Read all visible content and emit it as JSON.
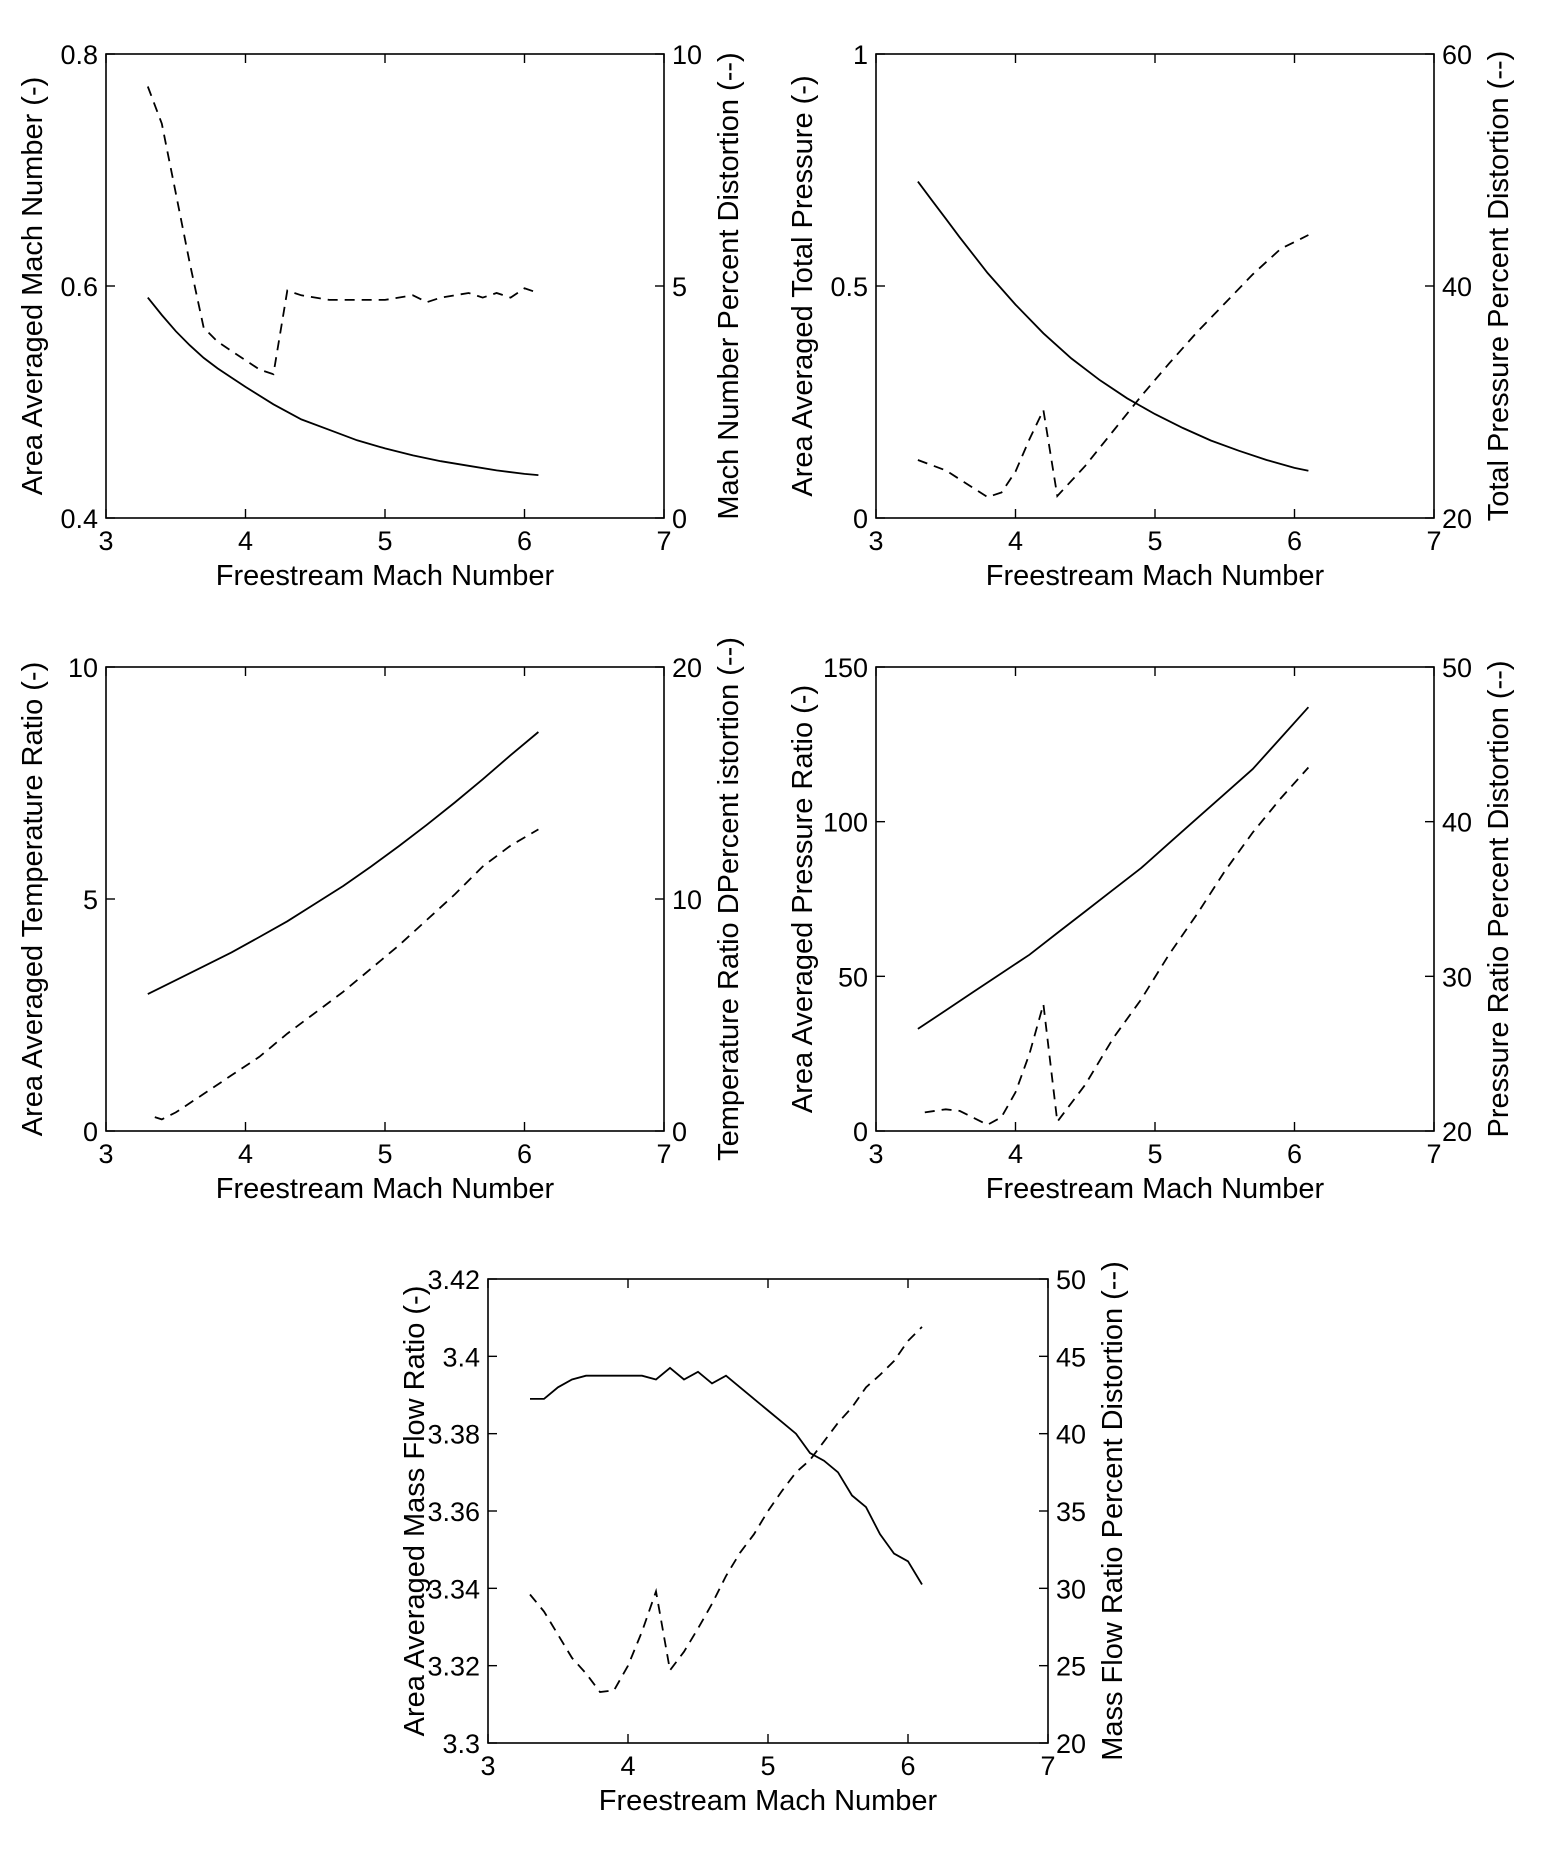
{
  "chart_data": [
    {
      "type": "line",
      "xlabel": "Freestream Mach Number",
      "ylabel": "Area Averaged Mach Number (-)",
      "y2label": "Mach Number Percent Distortion (--)",
      "xlim": [
        3,
        7
      ],
      "ylim": [
        0.4,
        0.8
      ],
      "y2lim": [
        0,
        10
      ],
      "xticks": [
        "3",
        "4",
        "5",
        "6",
        "7"
      ],
      "yticks": [
        "0.4",
        "0.6",
        "0.8"
      ],
      "y2ticks": [
        "0",
        "5",
        "10"
      ],
      "grid": false,
      "series": [
        {
          "axis": "left",
          "style": "solid",
          "x": [
            3.3,
            3.4,
            3.5,
            3.6,
            3.7,
            3.8,
            3.9,
            4.0,
            4.2,
            4.4,
            4.6,
            4.8,
            5.0,
            5.2,
            5.4,
            5.6,
            5.8,
            6.0,
            6.1
          ],
          "y": [
            0.59,
            0.575,
            0.561,
            0.549,
            0.538,
            0.529,
            0.521,
            0.513,
            0.498,
            0.485,
            0.476,
            0.467,
            0.46,
            0.454,
            0.449,
            0.445,
            0.441,
            0.438,
            0.437
          ]
        },
        {
          "axis": "right",
          "style": "dashed",
          "x": [
            3.3,
            3.4,
            3.5,
            3.6,
            3.7,
            3.8,
            3.9,
            4.0,
            4.1,
            4.2,
            4.3,
            4.4,
            4.6,
            4.8,
            5.0,
            5.2,
            5.3,
            5.4,
            5.6,
            5.7,
            5.8,
            5.9,
            6.0,
            6.1
          ],
          "y": [
            9.3,
            8.5,
            7.0,
            5.5,
            4.1,
            3.8,
            3.6,
            3.4,
            3.2,
            3.1,
            4.9,
            4.8,
            4.7,
            4.7,
            4.7,
            4.8,
            4.65,
            4.75,
            4.85,
            4.75,
            4.85,
            4.75,
            4.95,
            4.85
          ]
        }
      ]
    },
    {
      "type": "line",
      "xlabel": "Freestream Mach Number",
      "ylabel": "Area Averaged Total Pressure (-)",
      "y2label": "Total Pressure Percent Distortion (--)",
      "xlim": [
        3,
        7
      ],
      "ylim": [
        0,
        1
      ],
      "y2lim": [
        20,
        60
      ],
      "xticks": [
        "3",
        "4",
        "5",
        "6",
        "7"
      ],
      "yticks": [
        "0",
        "0.5",
        "1"
      ],
      "y2ticks": [
        "20",
        "40",
        "60"
      ],
      "grid": false,
      "series": [
        {
          "axis": "left",
          "style": "solid",
          "x": [
            3.3,
            3.4,
            3.5,
            3.6,
            3.8,
            4.0,
            4.2,
            4.4,
            4.6,
            4.8,
            5.0,
            5.2,
            5.4,
            5.6,
            5.8,
            6.0,
            6.1
          ],
          "y": [
            0.725,
            0.685,
            0.645,
            0.605,
            0.528,
            0.46,
            0.398,
            0.344,
            0.298,
            0.258,
            0.224,
            0.194,
            0.167,
            0.145,
            0.125,
            0.108,
            0.102
          ]
        },
        {
          "axis": "right",
          "style": "dashed",
          "x": [
            3.3,
            3.5,
            3.8,
            3.9,
            4.0,
            4.1,
            4.2,
            4.3,
            4.5,
            4.7,
            4.9,
            5.1,
            5.3,
            5.5,
            5.7,
            5.9,
            6.1
          ],
          "y": [
            25.0,
            24.1,
            21.8,
            22.2,
            24.0,
            26.8,
            29.3,
            21.9,
            24.5,
            27.5,
            30.5,
            33.3,
            36.0,
            38.5,
            41.0,
            43.2,
            44.4
          ]
        }
      ]
    },
    {
      "type": "line",
      "xlabel": "Freestream Mach Number",
      "ylabel": "Area Averaged Temperature Ratio (-)",
      "y2label": "Temperature Ratio DPercent istortion (--)",
      "xlim": [
        3,
        7
      ],
      "ylim": [
        0,
        10
      ],
      "y2lim": [
        0,
        20
      ],
      "xticks": [
        "3",
        "4",
        "5",
        "6",
        "7"
      ],
      "yticks": [
        "0",
        "5",
        "10"
      ],
      "y2ticks": [
        "0",
        "10",
        "20"
      ],
      "grid": false,
      "series": [
        {
          "axis": "left",
          "style": "solid",
          "x": [
            3.3,
            3.5,
            3.7,
            3.9,
            4.1,
            4.3,
            4.5,
            4.7,
            4.9,
            5.1,
            5.3,
            5.5,
            5.7,
            5.9,
            6.1
          ],
          "y": [
            2.95,
            3.25,
            3.55,
            3.85,
            4.18,
            4.52,
            4.9,
            5.28,
            5.7,
            6.14,
            6.6,
            7.08,
            7.58,
            8.1,
            8.6
          ]
        },
        {
          "axis": "right",
          "style": "dashed",
          "x": [
            3.35,
            3.4,
            3.5,
            3.7,
            3.9,
            4.1,
            4.3,
            4.5,
            4.7,
            4.9,
            5.1,
            5.3,
            5.5,
            5.7,
            5.9,
            6.1
          ],
          "y": [
            0.6,
            0.5,
            0.8,
            1.6,
            2.4,
            3.2,
            4.2,
            5.1,
            6.0,
            7.0,
            8.0,
            9.1,
            10.2,
            11.4,
            12.3,
            13.0
          ]
        }
      ]
    },
    {
      "type": "line",
      "xlabel": "Freestream Mach Number",
      "ylabel": "Area Averaged Pressure Ratio (-)",
      "y2label": "Pressure Ratio Percent Distortion (--)",
      "xlim": [
        3,
        7
      ],
      "ylim": [
        0,
        150
      ],
      "y2lim": [
        20,
        50
      ],
      "xticks": [
        "3",
        "4",
        "5",
        "6",
        "7"
      ],
      "yticks": [
        "0",
        "50",
        "100",
        "150"
      ],
      "y2ticks": [
        "20",
        "30",
        "40",
        "50"
      ],
      "grid": false,
      "series": [
        {
          "axis": "left",
          "style": "solid",
          "x": [
            3.3,
            3.5,
            3.7,
            3.9,
            4.1,
            4.3,
            4.5,
            4.7,
            4.9,
            5.1,
            5.3,
            5.5,
            5.7,
            5.9,
            6.1
          ],
          "y": [
            33,
            39,
            45,
            51,
            57,
            64,
            71,
            78,
            85,
            93,
            101,
            109,
            117,
            127,
            137
          ]
        },
        {
          "axis": "right",
          "style": "dashed",
          "x": [
            3.35,
            3.5,
            3.6,
            3.8,
            3.9,
            4.0,
            4.1,
            4.2,
            4.3,
            4.5,
            4.7,
            4.9,
            5.1,
            5.3,
            5.5,
            5.7,
            5.9,
            6.1
          ],
          "y": [
            21.2,
            21.4,
            21.3,
            20.4,
            20.9,
            22.5,
            25.0,
            28.2,
            20.6,
            23.0,
            26.0,
            28.5,
            31.4,
            34.0,
            36.8,
            39.3,
            41.5,
            43.5
          ]
        }
      ]
    },
    {
      "type": "line",
      "xlabel": "Freestream Mach Number",
      "ylabel": "Area Averaged Mass Flow Ratio (-)",
      "y2label": "Mass Flow Ratio Percent Distortion (--)",
      "xlim": [
        3,
        7
      ],
      "ylim": [
        3.3,
        3.42
      ],
      "y2lim": [
        20,
        50
      ],
      "xticks": [
        "3",
        "4",
        "5",
        "6",
        "7"
      ],
      "yticks": [
        "3.3",
        "3.32",
        "3.34",
        "3.36",
        "3.38",
        "3.4",
        "3.42"
      ],
      "y2ticks": [
        "20",
        "25",
        "30",
        "35",
        "40",
        "45",
        "50"
      ],
      "grid": false,
      "series": [
        {
          "axis": "left",
          "style": "solid",
          "x": [
            3.3,
            3.4,
            3.5,
            3.6,
            3.7,
            3.8,
            3.9,
            4.0,
            4.1,
            4.2,
            4.3,
            4.4,
            4.5,
            4.6,
            4.7,
            4.8,
            4.9,
            5.0,
            5.1,
            5.2,
            5.3,
            5.4,
            5.5,
            5.6,
            5.7,
            5.8,
            5.9,
            6.0,
            6.1
          ],
          "y": [
            3.389,
            3.389,
            3.392,
            3.394,
            3.395,
            3.395,
            3.395,
            3.395,
            3.395,
            3.394,
            3.397,
            3.394,
            3.396,
            3.393,
            3.395,
            3.392,
            3.389,
            3.386,
            3.383,
            3.38,
            3.375,
            3.373,
            3.37,
            3.364,
            3.361,
            3.354,
            3.349,
            3.347,
            3.341
          ]
        },
        {
          "axis": "right",
          "style": "dashed",
          "x": [
            3.3,
            3.4,
            3.5,
            3.6,
            3.7,
            3.8,
            3.9,
            4.0,
            4.1,
            4.2,
            4.3,
            4.4,
            4.5,
            4.6,
            4.7,
            4.8,
            4.9,
            5.0,
            5.1,
            5.2,
            5.3,
            5.4,
            5.5,
            5.6,
            5.7,
            5.8,
            5.9,
            6.0,
            6.1
          ],
          "y": [
            29.6,
            28.5,
            27.0,
            25.5,
            24.5,
            23.3,
            23.4,
            25.0,
            27.2,
            29.8,
            24.7,
            25.9,
            27.4,
            29.0,
            30.8,
            32.3,
            33.5,
            35.0,
            36.3,
            37.5,
            38.3,
            39.5,
            40.7,
            41.7,
            43.0,
            43.8,
            44.7,
            46.0,
            46.9
          ]
        }
      ]
    }
  ]
}
